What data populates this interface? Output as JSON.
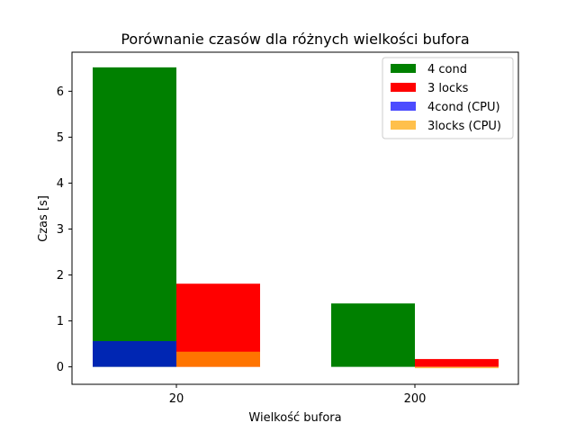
{
  "chart_data": {
    "type": "bar",
    "title": "Porównanie czasów dla różnych wielkości bufora",
    "xlabel": "Wielkość bufora",
    "ylabel": "Czas [s]",
    "categories": [
      "20",
      "200"
    ],
    "ylim": [
      -0.38,
      6.85
    ],
    "yticks": [
      0,
      1,
      2,
      3,
      4,
      5,
      6
    ],
    "legend_position": "top-right",
    "grid": false,
    "series": [
      {
        "name": "4 cond",
        "values": [
          6.52,
          1.38
        ],
        "color": "#008000",
        "slot": "left"
      },
      {
        "name": "3 locks",
        "values": [
          1.81,
          0.17
        ],
        "color": "#ff0000",
        "slot": "right"
      },
      {
        "name": "4cond (CPU)",
        "values": [
          0.56,
          0.0
        ],
        "color": "#0000ff",
        "alpha": 0.7,
        "slot": "left"
      },
      {
        "name": "3locks (CPU)",
        "values": [
          0.33,
          -0.03
        ],
        "color": "#ffa500",
        "alpha": 0.7,
        "slot": "right"
      }
    ]
  }
}
